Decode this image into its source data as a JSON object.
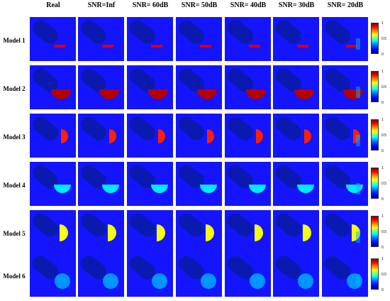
{
  "columns": [
    "Real",
    "SNR=Inf",
    "SNR= 60dB",
    "SNR= 50dB",
    "SNR= 40dB",
    "SNR= 30dB",
    "SNR= 20dB"
  ],
  "rows": [
    {
      "label": "Model 1",
      "inclusion": "small-strip",
      "value": 0.92
    },
    {
      "label": "Model 2",
      "inclusion": "large-half-disc",
      "value": 0.95
    },
    {
      "label": "Model 3",
      "inclusion": "right-half-disc",
      "value": 0.85
    },
    {
      "label": "Model 4",
      "inclusion": "half-disc",
      "value": 0.4
    },
    {
      "label": "Model 5",
      "inclusion": "right-half-disc-large",
      "value": 0.62
    },
    {
      "label": "Model 6",
      "inclusion": "disc",
      "value": 0.32
    }
  ],
  "colorbar": {
    "ticks": [
      "1",
      "0.5",
      "0"
    ]
  },
  "colors": {
    "background": "#1414ff",
    "capsule": "#0a1ab0"
  }
}
